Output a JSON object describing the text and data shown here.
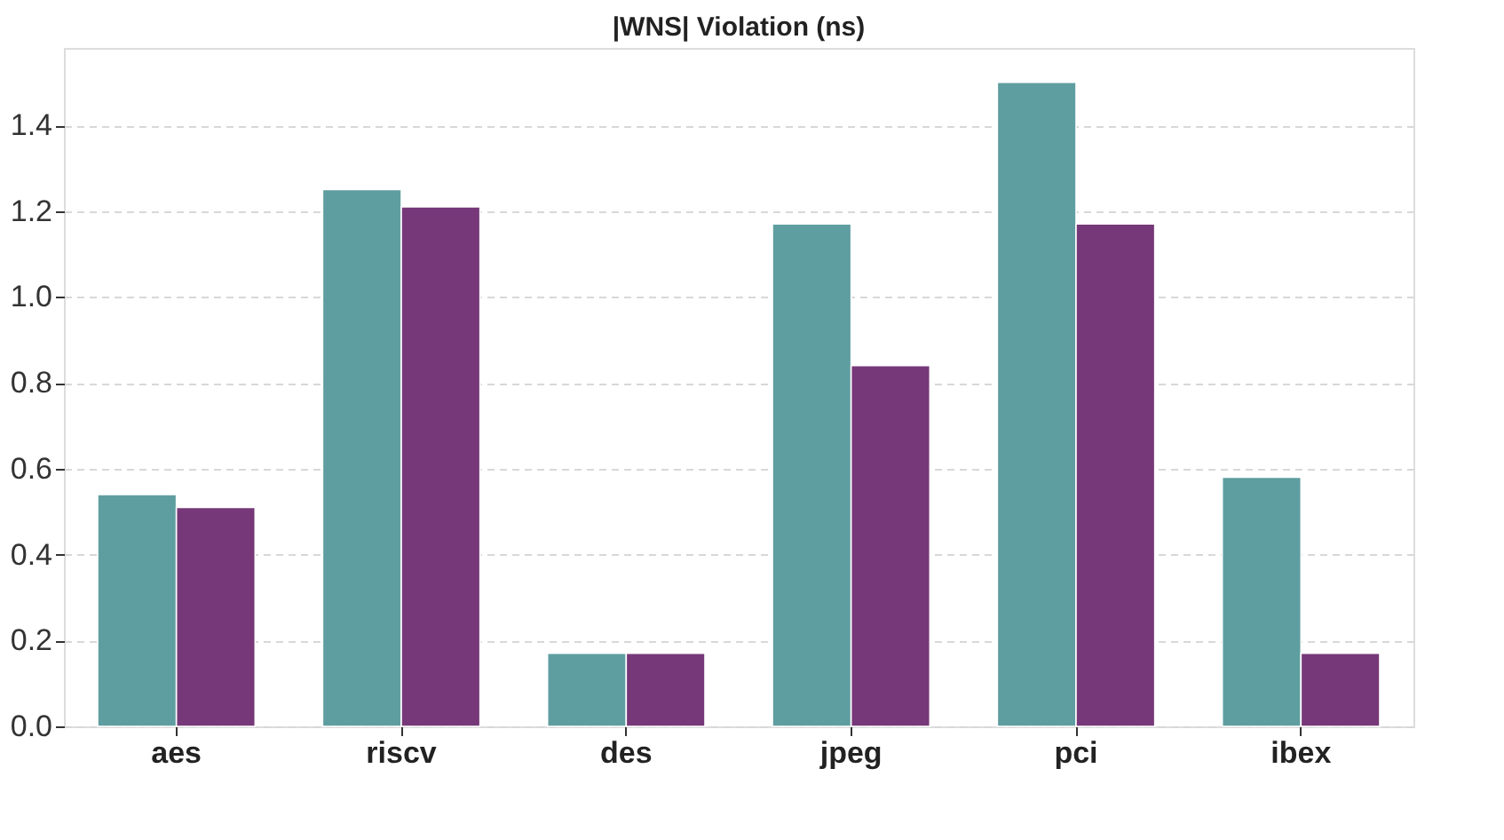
{
  "chart_data": {
    "type": "bar",
    "title": "|WNS| Violation (ns)",
    "categories": [
      "aes",
      "riscv",
      "des",
      "jpeg",
      "pci",
      "ibex"
    ],
    "series": [
      {
        "color": "#5f9ea0",
        "values": [
          0.54,
          1.25,
          0.17,
          1.17,
          1.5,
          0.58
        ]
      },
      {
        "color": "#763878",
        "values": [
          0.51,
          1.21,
          0.17,
          0.84,
          1.17,
          0.17
        ]
      }
    ],
    "ylim": [
      0,
      1.58
    ],
    "yticks": [
      {
        "value": 0,
        "label": "0.0"
      },
      0.2,
      0.4,
      0.6,
      0.8,
      {
        "value": 1,
        "label": "1.0"
      },
      1.2,
      1.4
    ],
    "grid": "y"
  }
}
